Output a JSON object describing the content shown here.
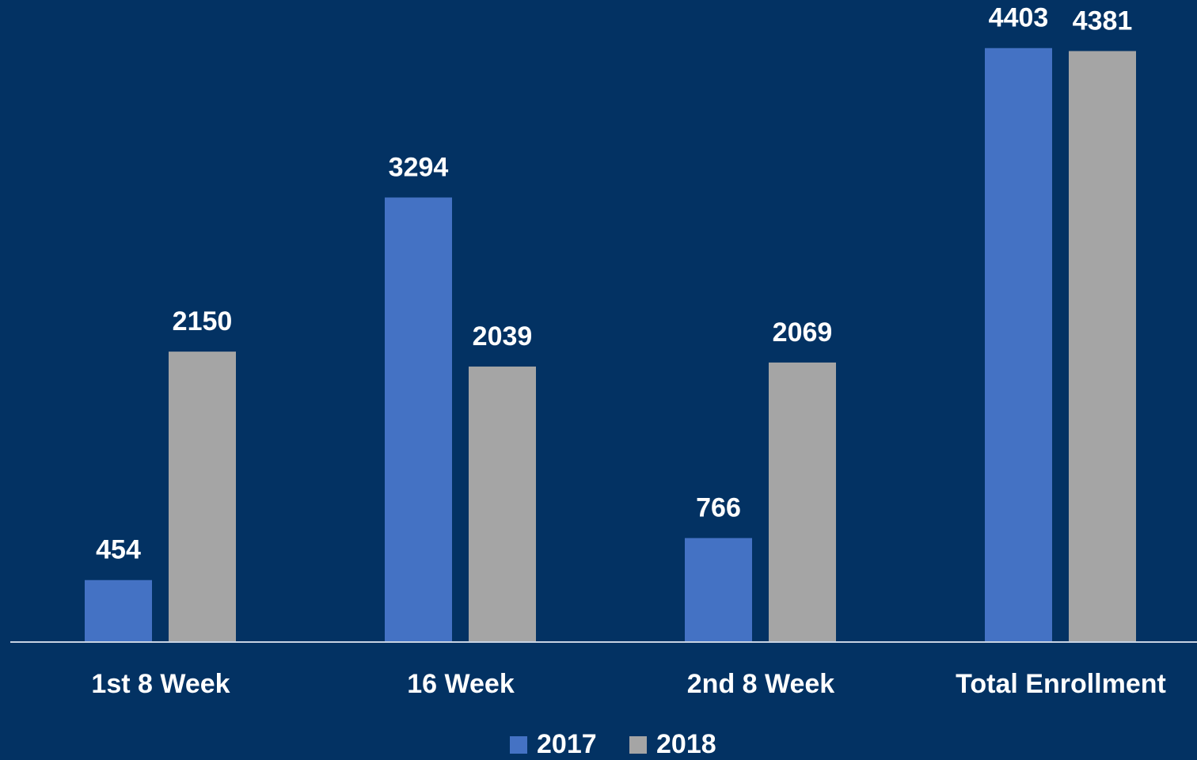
{
  "chart_data": {
    "type": "bar",
    "categories": [
      "1st 8 Week",
      "16 Week",
      "2nd 8 Week",
      "Total Enrollment"
    ],
    "series": [
      {
        "name": "2017",
        "color": "#4472c4",
        "values": [
          454,
          3294,
          766,
          4403
        ]
      },
      {
        "name": "2018",
        "color": "#a5a5a5",
        "values": [
          2150,
          2039,
          2069,
          4381
        ]
      }
    ],
    "ylim": [
      0,
      4760
    ]
  }
}
